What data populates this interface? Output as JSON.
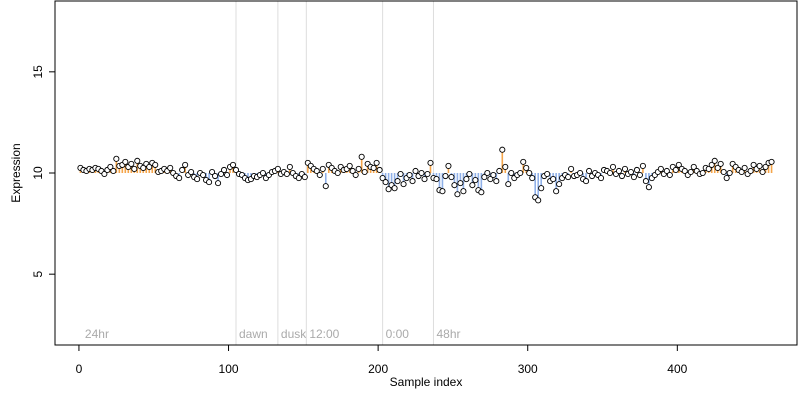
{
  "chart_data": {
    "type": "scatter",
    "title": "",
    "xlabel": "Sample index",
    "ylabel": "Expression",
    "xlim": [
      -16,
      480
    ],
    "ylim": [
      1.5,
      18.5
    ],
    "x_ticks": [
      0,
      100,
      200,
      300,
      400
    ],
    "y_ticks": [
      5,
      10,
      15
    ],
    "grid": false,
    "baseline": 10,
    "n_points": 463,
    "colors": {
      "above_baseline": "#f5a54a",
      "below_baseline": "#8fb0e8",
      "point_fill": "#ffffff",
      "point_stroke": "#000000",
      "phase_line": "#dddddd",
      "phase_label": "#aaaaaa"
    },
    "phase_markers": [
      {
        "label": "24hr",
        "x": 2
      },
      {
        "label": "dawn",
        "x": 105
      },
      {
        "label": "dusk",
        "x": 133
      },
      {
        "label": "12:00",
        "x": 152
      },
      {
        "label": "0:00",
        "x": 203
      },
      {
        "label": "48hr",
        "x": 237
      }
    ],
    "series_values": [
      [
        1,
        10.25
      ],
      [
        3,
        10.15
      ],
      [
        5,
        10.1
      ],
      [
        7,
        10.2
      ],
      [
        9,
        10.15
      ],
      [
        11,
        10.25
      ],
      [
        13,
        10.2
      ],
      [
        15,
        10.1
      ],
      [
        17,
        9.95
      ],
      [
        19,
        10.15
      ],
      [
        21,
        10.3
      ],
      [
        23,
        10.1
      ],
      [
        25,
        10.7
      ],
      [
        27,
        10.35
      ],
      [
        29,
        10.4
      ],
      [
        31,
        10.55
      ],
      [
        33,
        10.3
      ],
      [
        35,
        10.45
      ],
      [
        37,
        10.2
      ],
      [
        39,
        10.6
      ],
      [
        41,
        10.35
      ],
      [
        43,
        10.25
      ],
      [
        45,
        10.45
      ],
      [
        47,
        10.3
      ],
      [
        49,
        10.5
      ],
      [
        51,
        10.4
      ],
      [
        53,
        10.05
      ],
      [
        55,
        10.1
      ],
      [
        57,
        10.2
      ],
      [
        59,
        10.1
      ],
      [
        61,
        10.25
      ],
      [
        63,
        10.0
      ],
      [
        65,
        9.85
      ],
      [
        67,
        9.75
      ],
      [
        69,
        10.15
      ],
      [
        71,
        10.4
      ],
      [
        73,
        9.9
      ],
      [
        75,
        10.05
      ],
      [
        77,
        9.8
      ],
      [
        79,
        9.7
      ],
      [
        81,
        10.0
      ],
      [
        83,
        9.9
      ],
      [
        85,
        9.65
      ],
      [
        87,
        9.55
      ],
      [
        89,
        10.05
      ],
      [
        91,
        9.85
      ],
      [
        93,
        9.5
      ],
      [
        95,
        9.95
      ],
      [
        97,
        10.15
      ],
      [
        99,
        9.9
      ],
      [
        101,
        10.3
      ],
      [
        103,
        10.4
      ],
      [
        105,
        10.15
      ],
      [
        107,
        9.95
      ],
      [
        109,
        9.9
      ],
      [
        111,
        9.75
      ],
      [
        113,
        9.65
      ],
      [
        115,
        9.7
      ],
      [
        117,
        9.85
      ],
      [
        119,
        9.8
      ],
      [
        121,
        9.9
      ],
      [
        123,
        10.0
      ],
      [
        125,
        9.75
      ],
      [
        127,
        9.9
      ],
      [
        129,
        10.05
      ],
      [
        131,
        10.1
      ],
      [
        133,
        10.2
      ],
      [
        135,
        9.95
      ],
      [
        137,
        10.05
      ],
      [
        139,
        9.95
      ],
      [
        141,
        10.3
      ],
      [
        143,
        10.0
      ],
      [
        145,
        9.85
      ],
      [
        147,
        9.75
      ],
      [
        149,
        9.95
      ],
      [
        151,
        9.8
      ],
      [
        153,
        10.5
      ],
      [
        155,
        10.35
      ],
      [
        157,
        10.2
      ],
      [
        159,
        10.1
      ],
      [
        161,
        9.9
      ],
      [
        163,
        10.2
      ],
      [
        165,
        9.35
      ],
      [
        167,
        10.4
      ],
      [
        169,
        10.25
      ],
      [
        171,
        10.1
      ],
      [
        173,
        10.0
      ],
      [
        175,
        10.3
      ],
      [
        177,
        10.15
      ],
      [
        179,
        10.2
      ],
      [
        181,
        10.35
      ],
      [
        183,
        10.1
      ],
      [
        185,
        9.9
      ],
      [
        187,
        10.2
      ],
      [
        189,
        10.8
      ],
      [
        191,
        10.05
      ],
      [
        193,
        10.45
      ],
      [
        195,
        10.3
      ],
      [
        197,
        10.25
      ],
      [
        199,
        10.5
      ],
      [
        201,
        10.15
      ],
      [
        203,
        9.75
      ],
      [
        205,
        9.55
      ],
      [
        207,
        9.2
      ],
      [
        209,
        9.4
      ],
      [
        211,
        9.25
      ],
      [
        213,
        9.6
      ],
      [
        215,
        9.95
      ],
      [
        217,
        9.45
      ],
      [
        219,
        9.75
      ],
      [
        221,
        9.9
      ],
      [
        223,
        9.6
      ],
      [
        225,
        10.1
      ],
      [
        227,
        9.85
      ],
      [
        229,
        10.0
      ],
      [
        231,
        9.7
      ],
      [
        233,
        9.95
      ],
      [
        235,
        10.5
      ],
      [
        237,
        9.75
      ],
      [
        239,
        9.7
      ],
      [
        241,
        9.15
      ],
      [
        243,
        9.1
      ],
      [
        245,
        9.85
      ],
      [
        247,
        10.35
      ],
      [
        249,
        9.8
      ],
      [
        251,
        9.4
      ],
      [
        253,
        8.95
      ],
      [
        255,
        9.5
      ],
      [
        257,
        9.1
      ],
      [
        259,
        9.7
      ],
      [
        261,
        9.95
      ],
      [
        263,
        9.4
      ],
      [
        265,
        9.65
      ],
      [
        267,
        9.15
      ],
      [
        269,
        9.05
      ],
      [
        271,
        9.8
      ],
      [
        273,
        10.0
      ],
      [
        275,
        9.7
      ],
      [
        277,
        9.9
      ],
      [
        279,
        9.6
      ],
      [
        281,
        10.1
      ],
      [
        283,
        11.15
      ],
      [
        285,
        10.3
      ],
      [
        287,
        9.45
      ],
      [
        289,
        10.0
      ],
      [
        291,
        9.75
      ],
      [
        293,
        9.9
      ],
      [
        295,
        10.0
      ],
      [
        297,
        10.55
      ],
      [
        299,
        10.25
      ],
      [
        301,
        10.0
      ],
      [
        303,
        9.75
      ],
      [
        305,
        8.8
      ],
      [
        307,
        8.65
      ],
      [
        309,
        9.25
      ],
      [
        311,
        9.85
      ],
      [
        313,
        9.95
      ],
      [
        315,
        9.6
      ],
      [
        317,
        9.7
      ],
      [
        319,
        9.1
      ],
      [
        321,
        9.45
      ],
      [
        323,
        9.75
      ],
      [
        325,
        9.9
      ],
      [
        327,
        9.8
      ],
      [
        329,
        10.2
      ],
      [
        331,
        9.85
      ],
      [
        333,
        9.9
      ],
      [
        335,
        10.0
      ],
      [
        337,
        9.7
      ],
      [
        339,
        9.6
      ],
      [
        341,
        10.1
      ],
      [
        343,
        9.85
      ],
      [
        345,
        10.0
      ],
      [
        347,
        9.9
      ],
      [
        349,
        9.75
      ],
      [
        351,
        10.15
      ],
      [
        353,
        10.1
      ],
      [
        355,
        10.0
      ],
      [
        357,
        10.3
      ],
      [
        359,
        9.95
      ],
      [
        361,
        10.1
      ],
      [
        363,
        9.85
      ],
      [
        365,
        10.2
      ],
      [
        367,
        9.95
      ],
      [
        369,
        10.05
      ],
      [
        371,
        9.8
      ],
      [
        373,
        10.15
      ],
      [
        375,
        9.9
      ],
      [
        377,
        10.35
      ],
      [
        379,
        9.6
      ],
      [
        381,
        9.3
      ],
      [
        383,
        9.75
      ],
      [
        385,
        9.9
      ],
      [
        387,
        10.05
      ],
      [
        389,
        10.2
      ],
      [
        391,
        9.95
      ],
      [
        393,
        10.1
      ],
      [
        395,
        9.9
      ],
      [
        397,
        10.3
      ],
      [
        399,
        10.15
      ],
      [
        401,
        10.4
      ],
      [
        403,
        10.2
      ],
      [
        405,
        10.1
      ],
      [
        407,
        9.9
      ],
      [
        409,
        10.05
      ],
      [
        411,
        10.3
      ],
      [
        413,
        10.1
      ],
      [
        415,
        9.95
      ],
      [
        417,
        10.0
      ],
      [
        419,
        10.25
      ],
      [
        421,
        10.2
      ],
      [
        423,
        10.4
      ],
      [
        425,
        10.6
      ],
      [
        427,
        10.25
      ],
      [
        429,
        10.45
      ],
      [
        431,
        10.05
      ],
      [
        433,
        9.75
      ],
      [
        435,
        10.0
      ],
      [
        437,
        10.45
      ],
      [
        439,
        10.3
      ],
      [
        441,
        10.15
      ],
      [
        443,
        10.05
      ],
      [
        445,
        10.25
      ],
      [
        447,
        9.95
      ],
      [
        449,
        10.1
      ],
      [
        451,
        10.4
      ],
      [
        453,
        10.2
      ],
      [
        455,
        10.35
      ],
      [
        457,
        10.05
      ],
      [
        459,
        10.3
      ],
      [
        461,
        10.5
      ],
      [
        463,
        10.55
      ]
    ]
  }
}
